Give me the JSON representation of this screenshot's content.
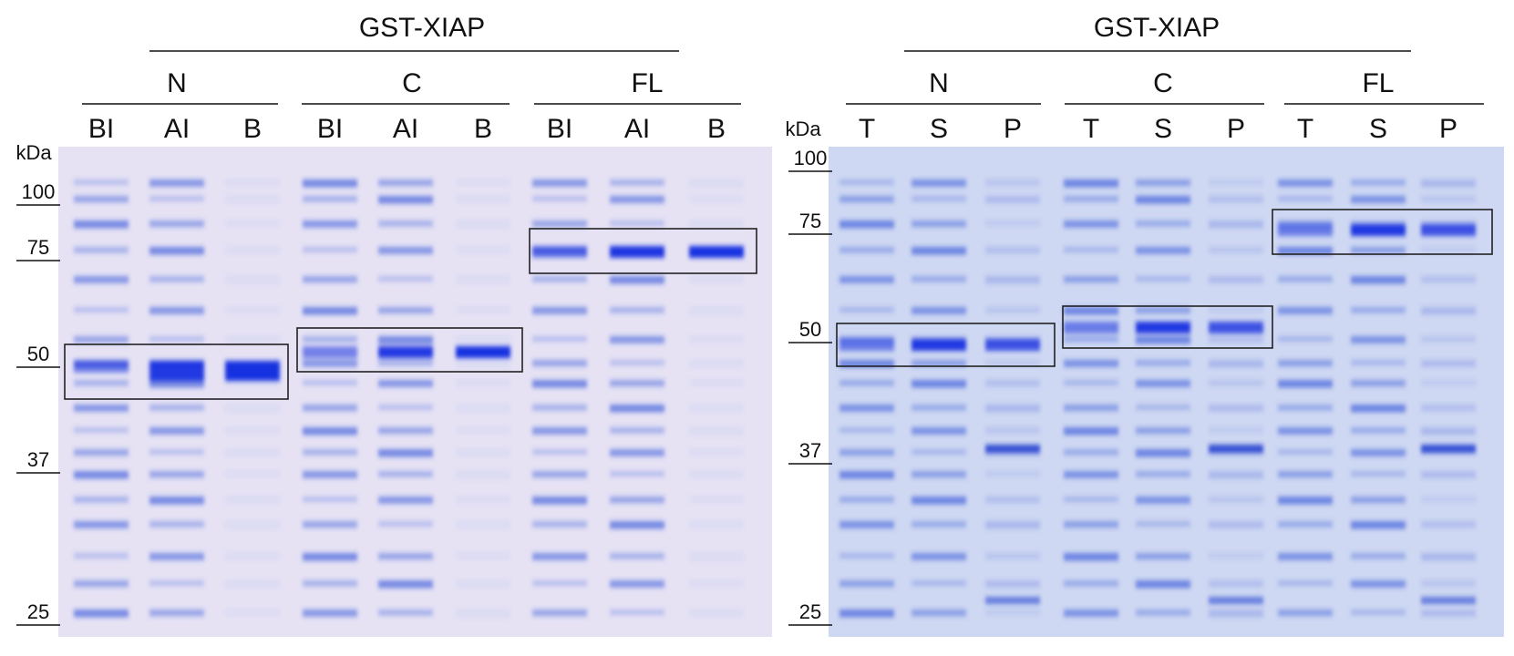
{
  "panels": [
    {
      "title": "GST-XIAP",
      "unit": "kDa",
      "markers": [
        "100",
        "75",
        "50",
        "37",
        "25"
      ],
      "groups": [
        {
          "label": "N",
          "lanes": [
            "BI",
            "AI",
            "B"
          ]
        },
        {
          "label": "C",
          "lanes": [
            "BI",
            "AI",
            "B"
          ]
        },
        {
          "label": "FL",
          "lanes": [
            "BI",
            "AI",
            "B"
          ]
        }
      ]
    },
    {
      "title": "GST-XIAP",
      "unit": "kDa",
      "markers": [
        "100",
        "75",
        "50",
        "37",
        "25"
      ],
      "groups": [
        {
          "label": "N",
          "lanes": [
            "T",
            "S",
            "P"
          ]
        },
        {
          "label": "C",
          "lanes": [
            "T",
            "S",
            "P"
          ]
        },
        {
          "label": "FL",
          "lanes": [
            "T",
            "S",
            "P"
          ]
        }
      ]
    }
  ]
}
